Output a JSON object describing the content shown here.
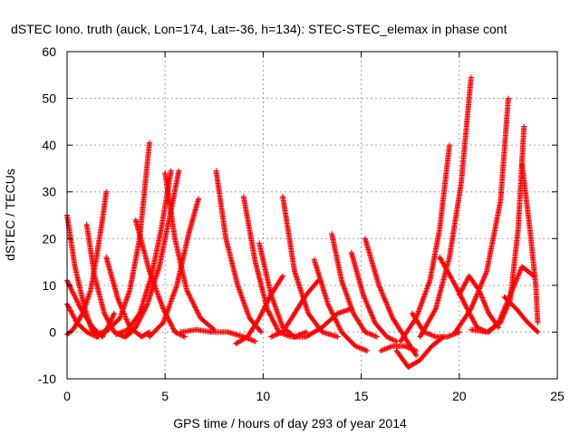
{
  "chart_data": {
    "type": "scatter",
    "title": "dSTEC Iono. truth (auck, Lon=174, Lat=-36, h=134): STEC-STEC_elemax in phase cont",
    "xlabel": "GPS time / hours of day 293 of year 2014",
    "ylabel": "dSTEC  / TECUs",
    "xlim": [
      0,
      25
    ],
    "ylim": [
      -10,
      60
    ],
    "xticks": [
      "0",
      "5",
      "10",
      "15",
      "20",
      "25"
    ],
    "yticks": [
      "-10",
      "0",
      "10",
      "20",
      "30",
      "40",
      "50",
      "60"
    ],
    "grid": true,
    "marker": "plus",
    "marker_color": "#ff0000",
    "arcs": [
      {
        "x": [
          0.0,
          0.4,
          0.9,
          1.3,
          1.6
        ],
        "y": [
          25,
          14,
          5,
          0,
          -1
        ]
      },
      {
        "x": [
          0.0,
          0.7,
          1.3,
          1.8,
          2.2,
          2.4
        ],
        "y": [
          11,
          5,
          1,
          -1,
          2,
          4
        ]
      },
      {
        "x": [
          0.0,
          0.5,
          1.0,
          1.5
        ],
        "y": [
          6,
          2,
          0,
          -1
        ]
      },
      {
        "x": [
          0.0,
          0.3,
          0.8,
          1.2,
          1.5,
          1.8,
          2.0
        ],
        "y": [
          -0.5,
          0.5,
          4,
          9,
          16,
          24,
          30
        ]
      },
      {
        "x": [
          1.0,
          1.4,
          1.9,
          2.4,
          2.9,
          3.3
        ],
        "y": [
          23,
          12,
          4,
          0,
          -1,
          0
        ]
      },
      {
        "x": [
          1.5,
          2.1,
          2.7,
          3.2,
          3.7,
          4.2
        ],
        "y": [
          -0.5,
          0.5,
          3,
          9,
          20,
          40.5
        ]
      },
      {
        "x": [
          2.0,
          2.6,
          3.2,
          3.8,
          4.2
        ],
        "y": [
          16,
          7,
          1,
          -1,
          0
        ]
      },
      {
        "x": [
          2.5,
          3.1,
          3.7,
          4.3,
          4.8,
          5.3
        ],
        "y": [
          -0.5,
          0.5,
          4,
          12,
          22,
          34.5
        ]
      },
      {
        "x": [
          3.0,
          3.5,
          4.1,
          4.7,
          5.3,
          5.7
        ],
        "y": [
          -1,
          1,
          6,
          14,
          26,
          34.5
        ]
      },
      {
        "x": [
          3.5,
          4.2,
          4.9,
          5.5,
          6.0
        ],
        "y": [
          24,
          13,
          5,
          0,
          -1
        ]
      },
      {
        "x": [
          4.2,
          4.9,
          5.6,
          6.2,
          6.7
        ],
        "y": [
          -1,
          2,
          10,
          21,
          28.5
        ]
      },
      {
        "x": [
          5.0,
          5.5,
          6.1,
          6.8,
          7.5
        ],
        "y": [
          34,
          20,
          9,
          3,
          0.5
        ]
      },
      {
        "x": [
          5.8,
          6.6,
          7.4,
          8.2,
          9.0,
          9.6
        ],
        "y": [
          0,
          0.5,
          0,
          0,
          -1,
          -2
        ]
      },
      {
        "x": [
          7.6,
          8.1,
          8.7,
          9.3,
          9.9
        ],
        "y": [
          34.5,
          20,
          10,
          3,
          0
        ]
      },
      {
        "x": [
          8.6,
          9.2,
          9.8,
          10.4,
          11.0
        ],
        "y": [
          -2.5,
          -1,
          3,
          8,
          12
        ]
      },
      {
        "x": [
          9.0,
          9.6,
          10.2,
          10.8,
          11.4
        ],
        "y": [
          29,
          15,
          5,
          0,
          -1
        ]
      },
      {
        "x": [
          9.8,
          10.4,
          11.0,
          11.6,
          12.2
        ],
        "y": [
          19,
          8,
          1,
          -1,
          0
        ]
      },
      {
        "x": [
          10.4,
          11.0,
          11.6,
          12.2,
          12.8
        ],
        "y": [
          -1,
          0,
          4,
          8,
          11
        ]
      },
      {
        "x": [
          11.0,
          11.6,
          12.3,
          13.0,
          13.8
        ],
        "y": [
          29,
          13,
          4,
          0,
          -1
        ]
      },
      {
        "x": [
          11.5,
          12.2,
          13.0,
          13.8,
          14.5
        ],
        "y": [
          -1,
          -1,
          1,
          4,
          5
        ]
      },
      {
        "x": [
          12.6,
          13.3,
          14.0,
          14.7,
          15.3
        ],
        "y": [
          15.5,
          6,
          0,
          -3,
          -4
        ]
      },
      {
        "x": [
          13.5,
          14.0,
          14.6,
          15.2,
          15.8
        ],
        "y": [
          21,
          11,
          4,
          0,
          -1
        ]
      },
      {
        "x": [
          14.5,
          15.1,
          15.7,
          16.3,
          16.8
        ],
        "y": [
          17,
          8,
          2,
          -1,
          -2
        ]
      },
      {
        "x": [
          15.2,
          15.9,
          16.6,
          17.2,
          17.8
        ],
        "y": [
          20,
          10,
          3,
          -1,
          -5
        ]
      },
      {
        "x": [
          16.0,
          16.6,
          17.2,
          17.8
        ],
        "y": [
          -4,
          -3,
          -3,
          -4
        ]
      },
      {
        "x": [
          16.8,
          17.4,
          18.0,
          18.6,
          19.2
        ],
        "y": [
          -4,
          -7.5,
          -6,
          -3,
          -1
        ]
      },
      {
        "x": [
          17.6,
          18.2,
          18.8,
          19.4,
          20.0
        ],
        "y": [
          4,
          0,
          -1,
          -1,
          0
        ]
      },
      {
        "x": [
          17.0,
          17.8,
          18.5,
          19.0,
          19.5
        ],
        "y": [
          -2,
          3,
          11,
          22,
          40
        ]
      },
      {
        "x": [
          18.0,
          18.8,
          19.5,
          20.1,
          20.6
        ],
        "y": [
          -1,
          5,
          16,
          32,
          54.5
        ]
      },
      {
        "x": [
          19.0,
          19.8,
          20.4,
          20.9,
          21.4
        ],
        "y": [
          16,
          10,
          5,
          1,
          0
        ]
      },
      {
        "x": [
          19.8,
          20.6,
          21.4,
          22.1,
          22.5
        ],
        "y": [
          0,
          5,
          13,
          28,
          50
        ]
      },
      {
        "x": [
          20.0,
          20.5,
          21.0,
          21.5,
          22.0
        ],
        "y": [
          8,
          12,
          9,
          4,
          1
        ]
      },
      {
        "x": [
          20.6,
          21.4,
          22.1,
          22.6,
          23.0,
          23.3
        ],
        "y": [
          0.5,
          0,
          2,
          7,
          22,
          44
        ]
      },
      {
        "x": [
          21.5,
          22.0,
          22.6,
          23.2,
          23.8
        ],
        "y": [
          0,
          2,
          8,
          14,
          12
        ]
      },
      {
        "x": [
          22.3,
          22.9,
          23.5,
          24.0
        ],
        "y": [
          7.5,
          5,
          2,
          0
        ]
      },
      {
        "x": [
          23.2,
          23.6,
          23.9,
          24.0
        ],
        "y": [
          36,
          22,
          10,
          2
        ]
      }
    ]
  }
}
